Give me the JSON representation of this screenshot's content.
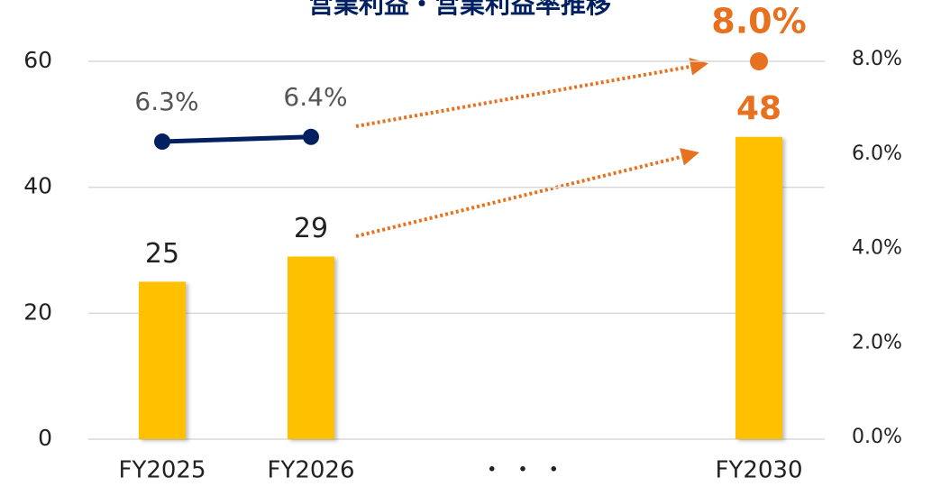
{
  "chart_data": {
    "type": "bar",
    "title": "営業利益・営業利益率推移",
    "categories": [
      "FY2025",
      "FY2026",
      "・ ・ ・",
      "FY2030"
    ],
    "series": [
      {
        "type": "bar",
        "color": "#FFC000",
        "values": [
          25,
          29,
          null,
          48
        ]
      },
      {
        "type": "line",
        "axis": "y2",
        "color": "#002060",
        "values": [
          6.3,
          6.4,
          null,
          8.0
        ],
        "value_labels": [
          "6.3%",
          "6.4%",
          null,
          "8.0%"
        ]
      }
    ],
    "highlight_color": "#E8711F",
    "ylim": [
      0,
      60
    ],
    "yticks": [
      0,
      20,
      40,
      60
    ],
    "y2lim": [
      0,
      8
    ],
    "y2ticks": [
      {
        "value": 0,
        "label": "0.0%"
      },
      {
        "value": 2,
        "label": "2.0%"
      },
      {
        "value": 4,
        "label": "4.0%"
      },
      {
        "value": 6,
        "label": "6.0%"
      },
      {
        "value": 8,
        "label": "8.0%"
      }
    ],
    "grid": true
  }
}
